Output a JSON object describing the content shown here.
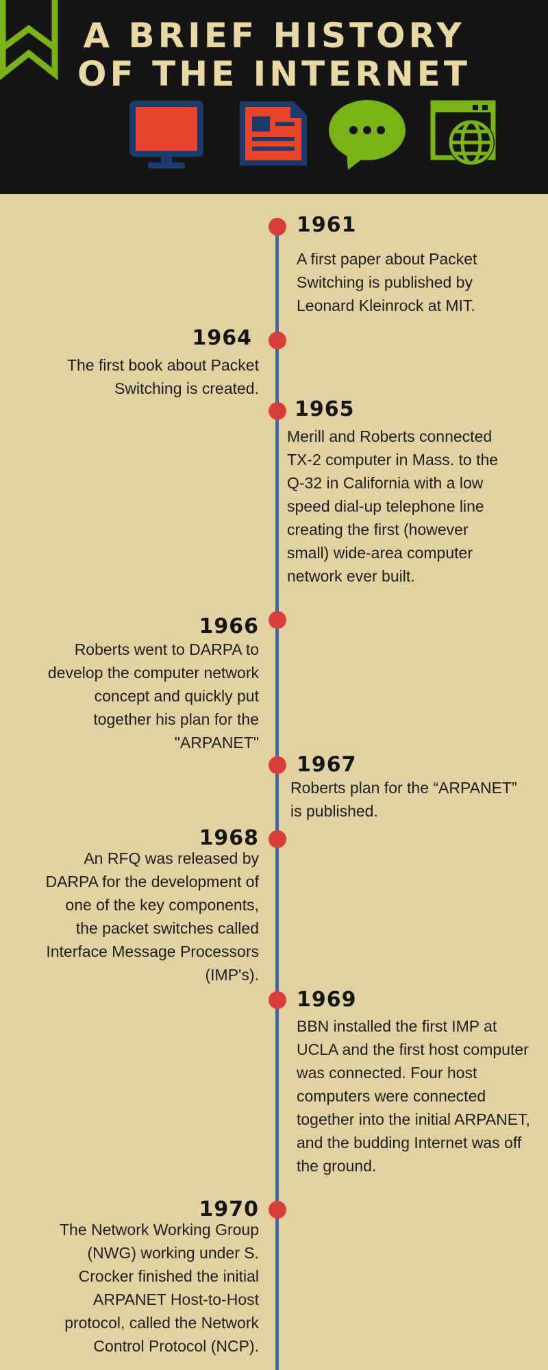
{
  "header": {
    "title_line1": "A BRIEF HISTORY",
    "title_line2": "OF THE INTERNET",
    "icons": [
      "bookmark-icon",
      "monitor-icon",
      "newspaper-icon",
      "chat-bubble-icon",
      "web-browser-globe-icon"
    ]
  },
  "colors": {
    "header_bg": "#151515",
    "page_bg": "#e2d2a1",
    "title": "#e9d7a4",
    "timeline_line": "#3f6aa7",
    "timeline_dot": "#d63d3d",
    "icon_red": "#e8452c",
    "icon_navy": "#1c3a6b",
    "icon_green": "#7ab317"
  },
  "timeline": [
    {
      "year": "1961",
      "text": "A first paper about Packet Switching is published by Leonard Kleinrock at MIT."
    },
    {
      "year": "1964",
      "text": "The first book about Packet Switching is created."
    },
    {
      "year": "1965",
      "text": " Merill and Roberts connected TX-2 computer in Mass. to the Q-32 in California with a low speed dial-up telephone line creating the first (however small) wide-area computer network ever built."
    },
    {
      "year": "1966",
      "text": "Roberts went to DARPA to develop the computer network concept and quickly put together his plan for the \"ARPANET\""
    },
    {
      "year": "1967",
      "text": "Roberts plan for the “ARPANET” is published."
    },
    {
      "year": "1968",
      "text": "An RFQ was released by DARPA for the development of one of the key components, the packet switches called Interface Message Processors (IMP's)."
    },
    {
      "year": "1969",
      "text": "BBN installed the first IMP at UCLA and the first host computer was connected. Four host computers were connected together into the initial ARPANET, and the budding Internet was off the ground."
    },
    {
      "year": "1970",
      "text": "The Network Working Group (NWG) working under S. Crocker finished the initial ARPANET Host-to-Host protocol, called the Network Control Protocol (NCP)."
    }
  ]
}
